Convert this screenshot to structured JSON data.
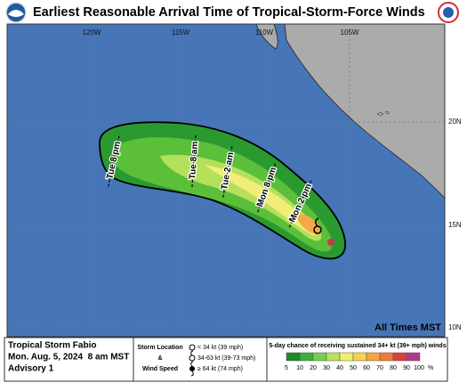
{
  "header": {
    "title": "Earliest Reasonable Arrival Time of Tropical-Storm-Force Winds"
  },
  "map": {
    "lon_labels": [
      "120W",
      "115W",
      "110W",
      "105W"
    ],
    "lat_labels": [
      "20N",
      "15N",
      "10N"
    ],
    "time_labels": [
      "Tue 8 pm",
      "Tue 8 am",
      "Tue 2 am",
      "Mon 8 pm",
      "Mon 2 pm"
    ],
    "note": "All Times MST"
  },
  "footer": {
    "storm_name": "Tropical Storm Fabio",
    "date": "Mon. Aug. 5, 2024  8 am MST",
    "advisory": "Advisory 1",
    "legend_lines": [
      "Storm Location",
      "&",
      "Wind Speed"
    ],
    "symbols": [
      "< 34 kt (39 mph)",
      "34-63 kt (39-73 mph)",
      "≥ 64 kt (74 mph)"
    ],
    "scale_title": "5-day chance of receiving sustained 34+ kt (39+ mph) winds",
    "scale_labels": [
      "5",
      "10",
      "20",
      "30",
      "40",
      "50",
      "60",
      "70",
      "80",
      "90",
      "100",
      "%"
    ],
    "scale_colors": [
      "#1f8a2a",
      "#3fae3a",
      "#78cc50",
      "#b8e25c",
      "#eef06a",
      "#f7d24e",
      "#f5a540",
      "#ee7a3a",
      "#d8403a",
      "#b03a8e"
    ]
  }
}
